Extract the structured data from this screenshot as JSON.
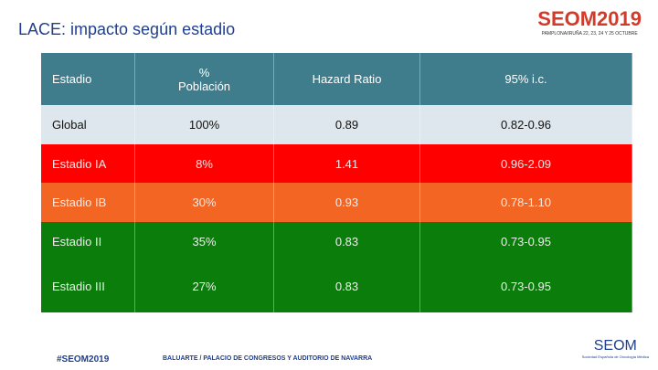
{
  "title": "LACE: impacto según estadio",
  "logo": {
    "name": "SEOM2019",
    "subtitle": "PAMPLONA/IRUÑA 22, 23, 24 Y 25 OCTUBRE"
  },
  "table": {
    "header": [
      "Estadio",
      "%\nPoblación",
      "Hazard Ratio",
      "95% i.c."
    ],
    "rows": [
      [
        "Global",
        "100%",
        "0.89",
        "0.82-0.96"
      ],
      [
        "Estadio IA",
        "8%",
        "1.41",
        "0.96-2.09"
      ],
      [
        "Estadio IB",
        "30%",
        "0.93",
        "0.78-1.10"
      ],
      [
        "Estadio II",
        "35%",
        "0.83",
        "0.73-0.95"
      ],
      [
        "Estadio  III",
        "27%",
        "0.83",
        "0.73-0.95"
      ]
    ]
  },
  "footer": {
    "hashtag": "#SEOM2019",
    "venue": "BALUARTE / PALACIO DE CONGRESOS Y AUDITORIO DE NAVARRA",
    "brand": "SEOM",
    "brand_sub": "Sociedad Española de Oncología Médica"
  }
}
